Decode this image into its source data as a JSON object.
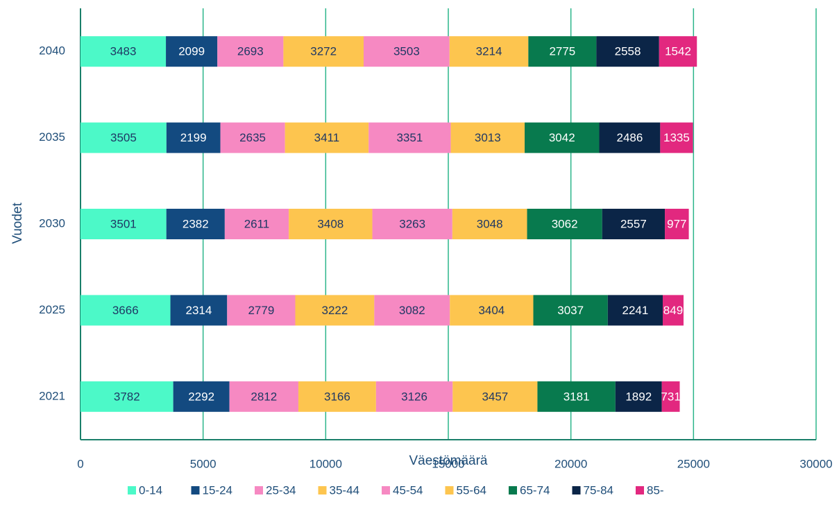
{
  "chart_data": {
    "type": "stacked_barh",
    "xlabel": "Väestömäärä",
    "ylabel": "Vuodet",
    "categories": [
      "2021",
      "2025",
      "2030",
      "2035",
      "2040"
    ],
    "series": [
      {
        "name": "0-14",
        "color": "#4cf9c8",
        "values": [
          3782,
          3666,
          3501,
          3505,
          3483
        ]
      },
      {
        "name": "15-24",
        "color": "#134a80",
        "values": [
          2292,
          2314,
          2382,
          2199,
          2099
        ]
      },
      {
        "name": "25-34",
        "color": "#f689c2",
        "values": [
          2812,
          2779,
          2611,
          2635,
          2693
        ]
      },
      {
        "name": "35-44",
        "color": "#fdc54f",
        "values": [
          3166,
          3222,
          3408,
          3411,
          3272
        ]
      },
      {
        "name": "45-54",
        "color": "#f689c2",
        "values": [
          3126,
          3082,
          3263,
          3351,
          3503
        ]
      },
      {
        "name": "55-64",
        "color": "#fdc54f",
        "values": [
          3457,
          3404,
          3048,
          3013,
          3214
        ]
      },
      {
        "name": "65-74",
        "color": "#087a4e",
        "values": [
          3181,
          3037,
          3062,
          3042,
          2775
        ]
      },
      {
        "name": "75-84",
        "color": "#0b2547",
        "values": [
          1892,
          2241,
          2557,
          2486,
          2558
        ]
      },
      {
        "name": "85-",
        "color": "#e2287f",
        "values": [
          731,
          849,
          977,
          1335,
          1542
        ]
      }
    ],
    "xlim": [
      0,
      30000
    ],
    "xticks": [
      0,
      5000,
      10000,
      15000,
      20000,
      25000,
      30000
    ],
    "grid": true
  }
}
